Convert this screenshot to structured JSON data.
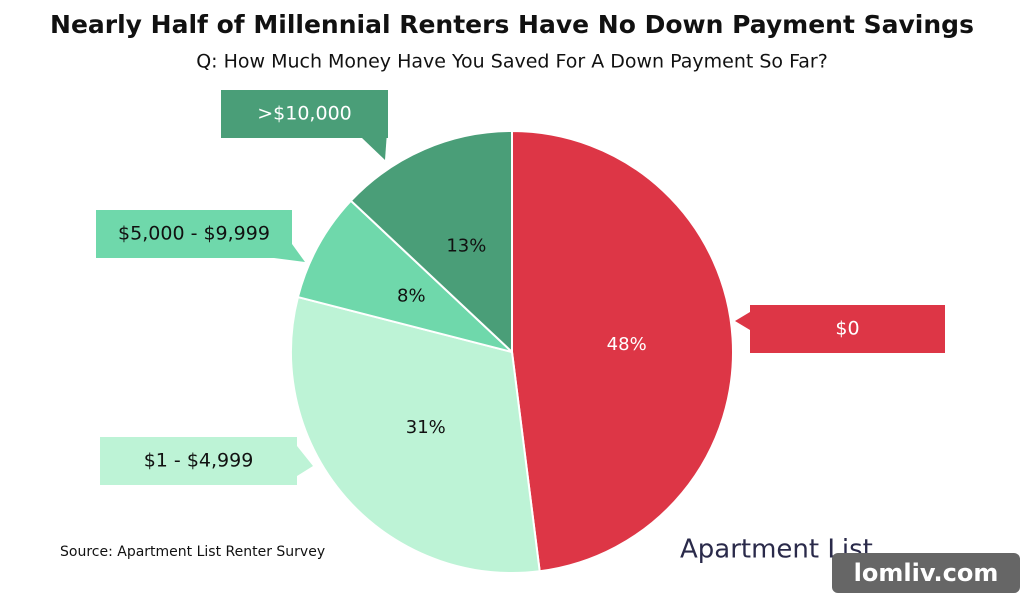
{
  "chart_data": {
    "type": "pie",
    "title": "Nearly Half of Millennial Renters Have No Down Payment Savings",
    "subtitle": "Q: How Much Money Have You Saved For A Down Payment So Far?",
    "categories": [
      "$0",
      "$1 - $4,999",
      "$5,000 - $9,999",
      ">$10,000"
    ],
    "values": [
      48,
      31,
      8,
      13
    ],
    "value_labels": [
      "48%",
      "31%",
      "8%",
      "13%"
    ],
    "colors": [
      "#dd3646",
      "#bdf3d6",
      "#6fd8ab",
      "#4a9e78"
    ],
    "source": "Source: Apartment List Renter Survey",
    "logo": "Apartment List",
    "watermark": "lomliv.com"
  }
}
